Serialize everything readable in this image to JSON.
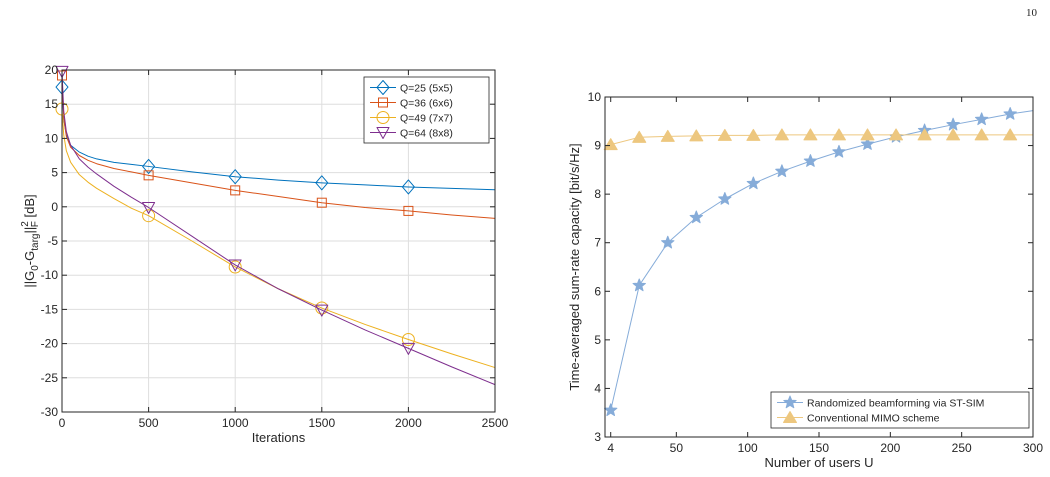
{
  "page_number": "10",
  "chart_data": [
    {
      "type": "line",
      "title": "",
      "xlabel": "Iterations",
      "ylabel_parts": {
        "a": "||G",
        "sub1": "0",
        "b": "-G",
        "sub2": "targ",
        "c": "||",
        "sup": "2",
        "sub3": "F",
        "d": " [dB]"
      },
      "xlim": [
        0,
        2500
      ],
      "ylim": [
        -30,
        20
      ],
      "x_ticks": [
        0,
        500,
        1000,
        1500,
        2000,
        2500
      ],
      "y_ticks": [
        -30,
        -25,
        -20,
        -15,
        -10,
        -5,
        0,
        5,
        10,
        15,
        20
      ],
      "grid": true,
      "legend_position": "top-right",
      "series": [
        {
          "name": "Q=25 (5x5)",
          "color": "#0072bd",
          "marker": "diamond",
          "x": [
            0,
            10,
            25,
            50,
            100,
            150,
            200,
            300,
            400,
            500,
            750,
            1000,
            1250,
            1500,
            1750,
            2000,
            2250,
            2500
          ],
          "y": [
            17.5,
            12.8,
            10.5,
            9.0,
            8.0,
            7.4,
            7.0,
            6.5,
            6.2,
            5.9,
            5.1,
            4.4,
            3.9,
            3.5,
            3.2,
            2.9,
            2.7,
            2.5
          ],
          "marker_x": [
            0,
            500,
            1000,
            1500,
            2000
          ],
          "marker_y": [
            17.5,
            5.9,
            4.4,
            3.5,
            2.9
          ]
        },
        {
          "name": "Q=36 (6x6)",
          "color": "#d95319",
          "marker": "square",
          "x": [
            0,
            10,
            25,
            50,
            100,
            150,
            200,
            300,
            400,
            500,
            750,
            1000,
            1250,
            1500,
            1750,
            2000,
            2250,
            2500
          ],
          "y": [
            19.2,
            13.0,
            10.3,
            8.7,
            7.5,
            6.8,
            6.3,
            5.6,
            5.1,
            4.6,
            3.5,
            2.4,
            1.5,
            0.6,
            -0.1,
            -0.6,
            -1.2,
            -1.7
          ],
          "marker_x": [
            0,
            500,
            1000,
            1500,
            2000
          ],
          "marker_y": [
            19.2,
            4.6,
            2.4,
            0.6,
            -0.6
          ]
        },
        {
          "name": "Q=49 (7x7)",
          "color": "#edb120",
          "marker": "circle",
          "x": [
            0,
            10,
            25,
            50,
            100,
            150,
            200,
            300,
            400,
            500,
            750,
            1000,
            1250,
            1500,
            1750,
            2000,
            2250,
            2500
          ],
          "y": [
            14.3,
            10.5,
            8.2,
            6.5,
            4.7,
            3.6,
            2.7,
            1.2,
            -0.2,
            -1.3,
            -5.0,
            -8.8,
            -12.0,
            -14.8,
            -17.2,
            -19.4,
            -21.5,
            -23.5
          ],
          "marker_x": [
            0,
            500,
            1000,
            1500,
            2000
          ],
          "marker_y": [
            14.3,
            -1.3,
            -8.8,
            -14.8,
            -19.4
          ]
        },
        {
          "name": "Q=64 (8x8)",
          "color": "#7e2f8e",
          "marker": "triangle-down",
          "x": [
            0,
            10,
            25,
            50,
            100,
            150,
            200,
            300,
            400,
            500,
            750,
            1000,
            1250,
            1500,
            1750,
            2000,
            2250,
            2500
          ],
          "y": [
            19.8,
            14.0,
            11.0,
            9.0,
            7.0,
            5.8,
            4.8,
            3.0,
            1.4,
            -0.1,
            -4.3,
            -8.5,
            -12.0,
            -15.1,
            -18.0,
            -20.7,
            -23.4,
            -26.0
          ],
          "marker_x": [
            0,
            500,
            1000,
            1500,
            2000
          ],
          "marker_y": [
            19.8,
            -0.1,
            -8.5,
            -15.1,
            -20.7
          ]
        }
      ]
    },
    {
      "type": "line",
      "title": "",
      "xlabel": "Number of users U",
      "ylabel": "Time-averaged sum-rate capacity [bit/s/Hz]",
      "xlim": [
        0,
        300
      ],
      "ylim": [
        3,
        10
      ],
      "x_ticks": [
        4,
        50,
        100,
        150,
        200,
        250,
        300
      ],
      "y_ticks": [
        3,
        4,
        5,
        6,
        7,
        8,
        9,
        10
      ],
      "grid": false,
      "legend_position": "bottom-right",
      "series": [
        {
          "name": "Randomized beamforming via ST-SIM",
          "color": "#86acd9",
          "marker": "star",
          "x": [
            4,
            24,
            44,
            64,
            84,
            104,
            124,
            144,
            164,
            184,
            204,
            224,
            244,
            264,
            284,
            300
          ],
          "y": [
            3.55,
            6.12,
            7.0,
            7.52,
            7.9,
            8.22,
            8.47,
            8.68,
            8.87,
            9.03,
            9.18,
            9.31,
            9.43,
            9.54,
            9.65,
            9.72
          ],
          "marker_x": [
            4,
            24,
            44,
            64,
            84,
            104,
            124,
            144,
            164,
            184,
            204,
            224,
            244,
            264,
            284
          ],
          "marker_y": [
            3.55,
            6.12,
            7.0,
            7.52,
            7.9,
            8.22,
            8.47,
            8.68,
            8.87,
            9.03,
            9.18,
            9.31,
            9.43,
            9.54,
            9.65
          ]
        },
        {
          "name": "Conventional MIMO scheme",
          "color": "#edc77f",
          "marker": "triangle-up",
          "x": [
            4,
            24,
            44,
            64,
            84,
            104,
            124,
            144,
            164,
            184,
            204,
            224,
            244,
            264,
            284,
            300
          ],
          "y": [
            9.02,
            9.17,
            9.19,
            9.2,
            9.21,
            9.21,
            9.22,
            9.22,
            9.22,
            9.22,
            9.22,
            9.22,
            9.22,
            9.22,
            9.22,
            9.22
          ],
          "marker_x": [
            4,
            24,
            44,
            64,
            84,
            104,
            124,
            144,
            164,
            184,
            204,
            224,
            244,
            264,
            284
          ],
          "marker_y": [
            9.02,
            9.17,
            9.19,
            9.2,
            9.21,
            9.21,
            9.22,
            9.22,
            9.22,
            9.22,
            9.22,
            9.22,
            9.22,
            9.22,
            9.22
          ]
        }
      ]
    }
  ]
}
